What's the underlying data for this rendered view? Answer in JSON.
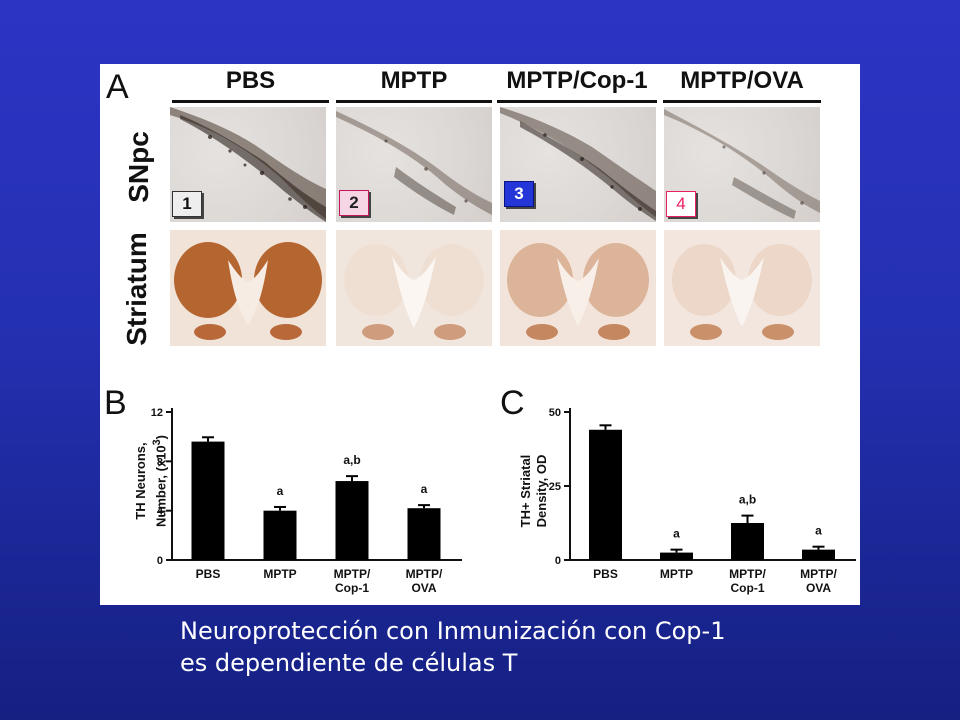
{
  "figure": {
    "panel_a": {
      "letter": "A",
      "columns": [
        "PBS",
        "MPTP",
        "MPTP/Cop-1",
        "MPTP/OVA"
      ],
      "rows": [
        "SNpc",
        "Striatum"
      ],
      "badges": [
        "1",
        "2",
        "3",
        "4"
      ]
    },
    "panel_b": {
      "letter": "B"
    },
    "panel_c": {
      "letter": "C"
    }
  },
  "chart_data": [
    {
      "type": "bar",
      "panel": "B",
      "ylabel_line1": "TH Neurons,",
      "ylabel_line2_pre": "Number, (x10",
      "ylabel_sup": "3",
      "ylabel_line2_post": ")",
      "categories": [
        [
          "PBS"
        ],
        [
          "MPTP"
        ],
        [
          "MPTP/",
          "Cop-1"
        ],
        [
          "MPTP/",
          "OVA"
        ]
      ],
      "values": [
        9.6,
        4.0,
        6.4,
        4.2
      ],
      "errors": [
        0.35,
        0.3,
        0.4,
        0.25
      ],
      "annotations": [
        "",
        "a",
        "a,b",
        "a"
      ],
      "ylim": [
        0,
        12
      ],
      "yticks": [
        0,
        4,
        8,
        12
      ]
    },
    {
      "type": "bar",
      "panel": "C",
      "ylabel_line1": "TH+ Striatal",
      "ylabel_line2": "Density, OD",
      "categories": [
        [
          "PBS"
        ],
        [
          "MPTP"
        ],
        [
          "MPTP/",
          "Cop-1"
        ],
        [
          "MPTP/",
          "OVA"
        ]
      ],
      "values": [
        44,
        2.5,
        12.5,
        3.5
      ],
      "errors": [
        1.5,
        1.0,
        2.5,
        1.0
      ],
      "annotations": [
        "",
        "a",
        "a,b",
        "a"
      ],
      "ylim": [
        0,
        50
      ],
      "yticks": [
        0,
        25,
        50
      ]
    }
  ],
  "caption": {
    "line1": "Neuroprotección con Inmunización con Cop-1",
    "line2": "es dependiente de células T"
  }
}
